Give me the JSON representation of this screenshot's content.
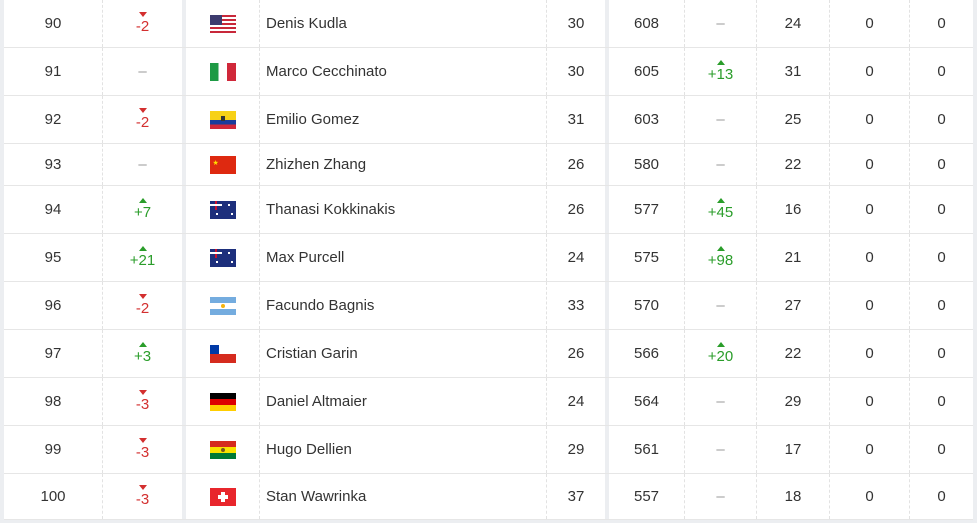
{
  "colors": {
    "up": "#2a9d2a",
    "down": "#d32f2f"
  },
  "rows": [
    {
      "rank": "90",
      "change": "-2",
      "dir": "down",
      "country": "USA",
      "name": "Denis Kudla",
      "age": "30",
      "points": "608",
      "pts_change": "–",
      "pts_dir": "none",
      "tournaments": "24",
      "dropping": "0",
      "next_best": "0"
    },
    {
      "rank": "91",
      "change": "–",
      "dir": "none",
      "country": "ITA",
      "name": "Marco Cecchinato",
      "age": "30",
      "points": "605",
      "pts_change": "+13",
      "pts_dir": "up",
      "tournaments": "31",
      "dropping": "0",
      "next_best": "0"
    },
    {
      "rank": "92",
      "change": "-2",
      "dir": "down",
      "country": "ECU",
      "name": "Emilio Gomez",
      "age": "31",
      "points": "603",
      "pts_change": "–",
      "pts_dir": "none",
      "tournaments": "25",
      "dropping": "0",
      "next_best": "0"
    },
    {
      "rank": "93",
      "change": "–",
      "dir": "none",
      "country": "CHN",
      "name": "Zhizhen Zhang",
      "age": "26",
      "points": "580",
      "pts_change": "–",
      "pts_dir": "none",
      "tournaments": "22",
      "dropping": "0",
      "next_best": "0"
    },
    {
      "rank": "94",
      "change": "+7",
      "dir": "up",
      "country": "AUS",
      "name": "Thanasi Kokkinakis",
      "age": "26",
      "points": "577",
      "pts_change": "+45",
      "pts_dir": "up",
      "tournaments": "16",
      "dropping": "0",
      "next_best": "0"
    },
    {
      "rank": "95",
      "change": "+21",
      "dir": "up",
      "country": "AUS",
      "name": "Max Purcell",
      "age": "24",
      "points": "575",
      "pts_change": "+98",
      "pts_dir": "up",
      "tournaments": "21",
      "dropping": "0",
      "next_best": "0"
    },
    {
      "rank": "96",
      "change": "-2",
      "dir": "down",
      "country": "ARG",
      "name": "Facundo Bagnis",
      "age": "33",
      "points": "570",
      "pts_change": "–",
      "pts_dir": "none",
      "tournaments": "27",
      "dropping": "0",
      "next_best": "0"
    },
    {
      "rank": "97",
      "change": "+3",
      "dir": "up",
      "country": "CHI",
      "name": "Cristian Garin",
      "age": "26",
      "points": "566",
      "pts_change": "+20",
      "pts_dir": "up",
      "tournaments": "22",
      "dropping": "0",
      "next_best": "0"
    },
    {
      "rank": "98",
      "change": "-3",
      "dir": "down",
      "country": "GER",
      "name": "Daniel Altmaier",
      "age": "24",
      "points": "564",
      "pts_change": "–",
      "pts_dir": "none",
      "tournaments": "29",
      "dropping": "0",
      "next_best": "0"
    },
    {
      "rank": "99",
      "change": "-3",
      "dir": "down",
      "country": "BOL",
      "name": "Hugo Dellien",
      "age": "29",
      "points": "561",
      "pts_change": "–",
      "pts_dir": "none",
      "tournaments": "17",
      "dropping": "0",
      "next_best": "0"
    },
    {
      "rank": "100",
      "change": "-3",
      "dir": "down",
      "country": "SUI",
      "name": "Stan Wawrinka",
      "age": "37",
      "points": "557",
      "pts_change": "–",
      "pts_dir": "none",
      "tournaments": "18",
      "dropping": "0",
      "next_best": "0"
    }
  ]
}
